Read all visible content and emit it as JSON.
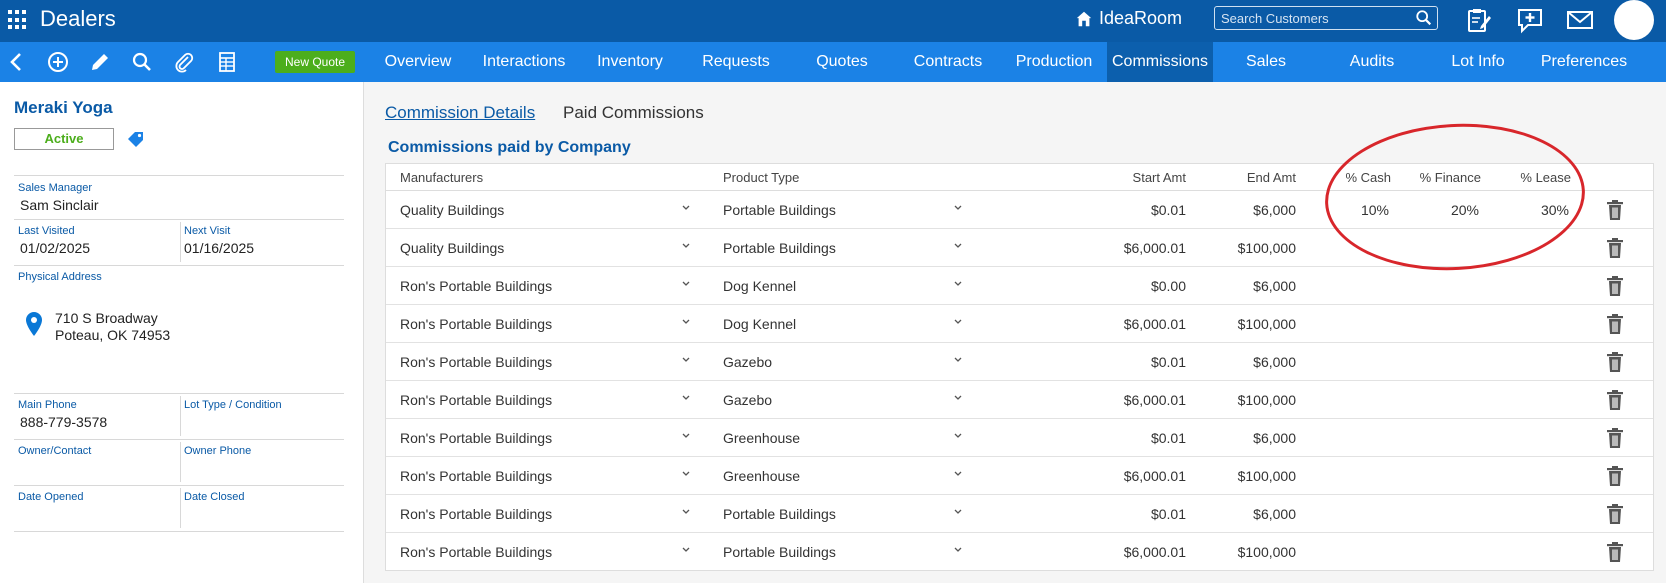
{
  "app": {
    "title": "Dealers",
    "brand": "IdeaRoom"
  },
  "search": {
    "placeholder": "Search Customers"
  },
  "toolbar": {
    "new_quote_label": "New Quote"
  },
  "nav": {
    "tabs": [
      {
        "label": "Overview"
      },
      {
        "label": "Interactions"
      },
      {
        "label": "Inventory"
      },
      {
        "label": "Requests"
      },
      {
        "label": "Quotes"
      },
      {
        "label": "Contracts"
      },
      {
        "label": "Production"
      },
      {
        "label": "Commissions"
      },
      {
        "label": "Sales"
      },
      {
        "label": "Audits"
      },
      {
        "label": "Lot Info"
      },
      {
        "label": "Preferences"
      }
    ],
    "active": "Commissions"
  },
  "sidebar": {
    "company": "Meraki Yoga",
    "status": "Active",
    "sales_manager_label": "Sales Manager",
    "sales_manager": "Sam Sinclair",
    "last_visited_label": "Last Visited",
    "last_visited": "01/02/2025",
    "next_visit_label": "Next Visit",
    "next_visit": "01/16/2025",
    "address_label": "Physical Address",
    "address_line1": "710 S Broadway",
    "address_line2": "Poteau, OK 74953",
    "main_phone_label": "Main Phone",
    "main_phone": "888-779-3578",
    "lot_type_label": "Lot Type / Condition",
    "owner_contact_label": "Owner/Contact",
    "owner_phone_label": "Owner Phone",
    "date_opened_label": "Date Opened",
    "date_closed_label": "Date Closed"
  },
  "main": {
    "tabs": [
      {
        "label": "Commission Details"
      },
      {
        "label": "Paid Commissions"
      }
    ],
    "section_title": "Commissions paid by Company",
    "columns": {
      "manufacturers": "Manufacturers",
      "product_type": "Product Type",
      "start_amt": "Start Amt",
      "end_amt": "End Amt",
      "cash": "% Cash",
      "finance": "% Finance",
      "lease": "% Lease"
    },
    "rows": [
      {
        "manufacturer": "Quality Buildings",
        "product": "Portable Buildings",
        "start": "$0.01",
        "end": "$6,000",
        "cash": "10%",
        "finance": "20%",
        "lease": "30%"
      },
      {
        "manufacturer": "Quality Buildings",
        "product": "Portable Buildings",
        "start": "$6,000.01",
        "end": "$100,000",
        "cash": "",
        "finance": "",
        "lease": ""
      },
      {
        "manufacturer": "Ron's Portable Buildings",
        "product": "Dog Kennel",
        "start": "$0.00",
        "end": "$6,000",
        "cash": "",
        "finance": "",
        "lease": ""
      },
      {
        "manufacturer": "Ron's Portable Buildings",
        "product": "Dog Kennel",
        "start": "$6,000.01",
        "end": "$100,000",
        "cash": "",
        "finance": "",
        "lease": ""
      },
      {
        "manufacturer": "Ron's Portable Buildings",
        "product": "Gazebo",
        "start": "$0.01",
        "end": "$6,000",
        "cash": "",
        "finance": "",
        "lease": ""
      },
      {
        "manufacturer": "Ron's Portable Buildings",
        "product": "Gazebo",
        "start": "$6,000.01",
        "end": "$100,000",
        "cash": "",
        "finance": "",
        "lease": ""
      },
      {
        "manufacturer": "Ron's Portable Buildings",
        "product": "Greenhouse",
        "start": "$0.01",
        "end": "$6,000",
        "cash": "",
        "finance": "",
        "lease": ""
      },
      {
        "manufacturer": "Ron's Portable Buildings",
        "product": "Greenhouse",
        "start": "$6,000.01",
        "end": "$100,000",
        "cash": "",
        "finance": "",
        "lease": ""
      },
      {
        "manufacturer": "Ron's Portable Buildings",
        "product": "Portable Buildings",
        "start": "$0.01",
        "end": "$6,000",
        "cash": "",
        "finance": "",
        "lease": ""
      },
      {
        "manufacturer": "Ron's Portable Buildings",
        "product": "Portable Buildings",
        "start": "$6,000.01",
        "end": "$100,000",
        "cash": "",
        "finance": "",
        "lease": ""
      }
    ]
  },
  "colors": {
    "top_bar": "#0a5aa6",
    "nav_bar": "#1b82e6",
    "accent_green": "#4cae1c",
    "annotation": "#d8262b"
  }
}
